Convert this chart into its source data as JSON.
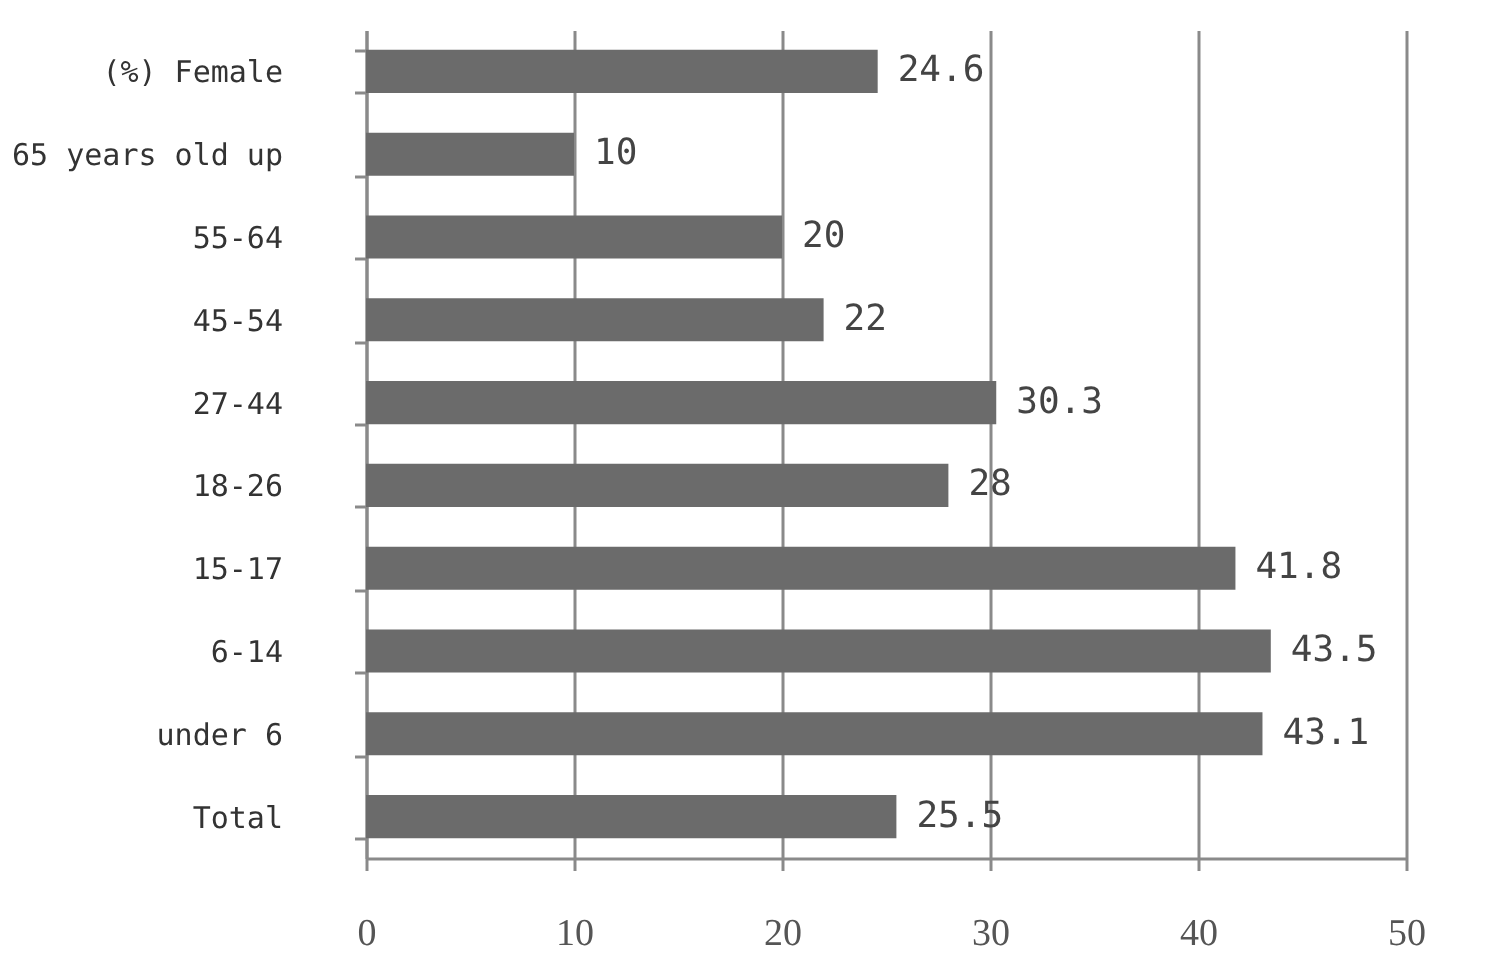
{
  "chart_data": {
    "type": "bar",
    "orientation": "horizontal",
    "categories": [
      "(%) Female",
      "65 years old up",
      "55-64",
      "45-54",
      "27-44",
      "18-26",
      "15-17",
      "6-14",
      "under 6",
      "Total"
    ],
    "values": [
      24.6,
      10,
      20,
      22,
      30.3,
      28,
      41.8,
      43.5,
      43.1,
      25.5
    ],
    "color": "#6b6b6b",
    "xlim": [
      0,
      50
    ],
    "xticks": [
      0,
      10,
      20,
      30,
      40,
      50
    ],
    "grid": "x",
    "data_labels": true
  }
}
